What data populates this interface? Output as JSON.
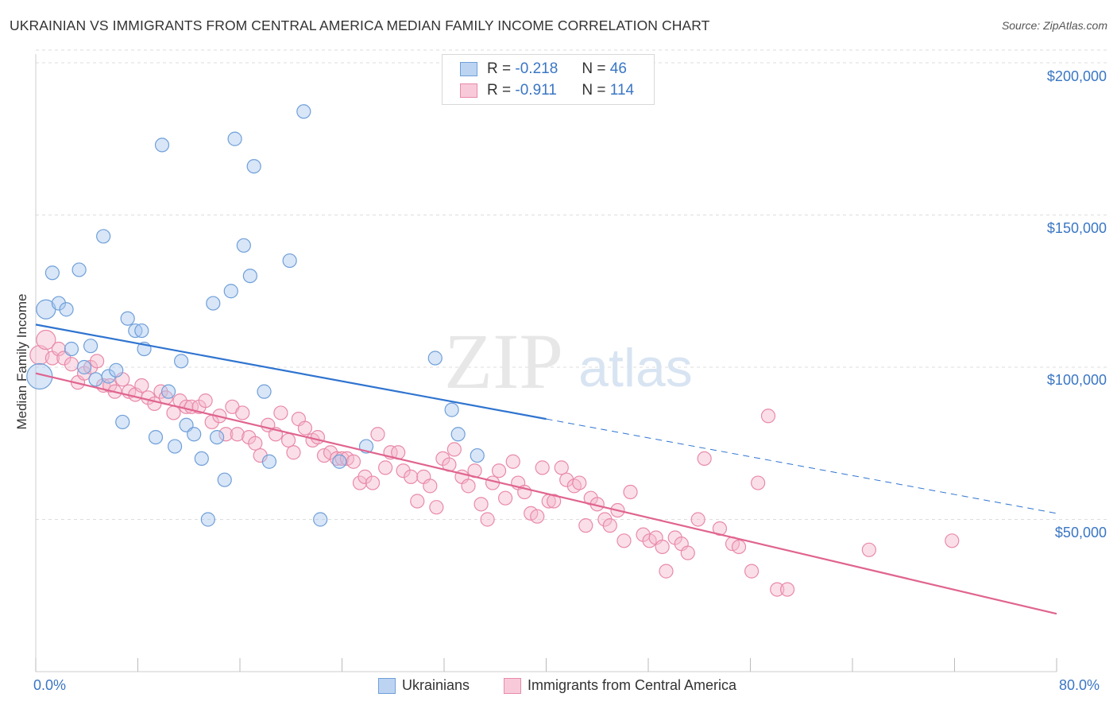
{
  "title": "UKRAINIAN VS IMMIGRANTS FROM CENTRAL AMERICA MEDIAN FAMILY INCOME CORRELATION CHART",
  "source": "Source: ZipAtlas.com",
  "watermark": {
    "zip": "ZIP",
    "atlas": "atlas"
  },
  "legend": {
    "r_label": "R =",
    "n_label": "N =",
    "ukrainians": {
      "r": "-0.218",
      "n": "46"
    },
    "central_america": {
      "r": "-0.911",
      "n": "114"
    }
  },
  "colors": {
    "blue_fill": "#a9c8ef",
    "blue_stroke": "#6f9fd8",
    "blue_line": "#2f74d0",
    "pink_fill": "#f5b8cc",
    "pink_stroke": "#e98aa9",
    "pink_line": "#e0648f",
    "tick_text": "#3a76c4",
    "grid": "#dddddd"
  },
  "chart_data": {
    "type": "scatter",
    "title": "UKRAINIAN VS IMMIGRANTS FROM CENTRAL AMERICA MEDIAN FAMILY INCOME CORRELATION CHART",
    "xlabel": "",
    "ylabel": "Median Family Income",
    "xlim": [
      0,
      80
    ],
    "ylim": [
      0,
      205000
    ],
    "x_tick_labels": [
      "0.0%",
      "80.0%"
    ],
    "y_ticks": [
      50000,
      100000,
      150000,
      200000
    ],
    "y_tick_labels": [
      "$50,000",
      "$100,000",
      "$150,000",
      "$200,000"
    ],
    "grid": true,
    "legend_position": "top-center",
    "bottom_legend": [
      "Ukrainians",
      "Immigrants from Central America"
    ],
    "series": [
      {
        "name": "Ukrainians",
        "points": [
          [
            0.3,
            97000,
            3
          ],
          [
            0.8,
            119000,
            2
          ],
          [
            1.3,
            131000,
            1
          ],
          [
            1.8,
            121000,
            1
          ],
          [
            2.4,
            119000,
            1
          ],
          [
            2.8,
            106000,
            1
          ],
          [
            3.4,
            132000,
            1
          ],
          [
            3.8,
            100000,
            1
          ],
          [
            4.3,
            107000,
            1
          ],
          [
            4.7,
            96000,
            1
          ],
          [
            5.3,
            143000,
            1
          ],
          [
            5.7,
            97000,
            1
          ],
          [
            6.3,
            99000,
            1
          ],
          [
            6.8,
            82000,
            1
          ],
          [
            7.2,
            116000,
            1
          ],
          [
            7.8,
            112000,
            1
          ],
          [
            8.3,
            112000,
            1
          ],
          [
            8.5,
            106000,
            1
          ],
          [
            9.4,
            77000,
            1
          ],
          [
            9.9,
            173000,
            1
          ],
          [
            10.4,
            92000,
            1
          ],
          [
            10.9,
            74000,
            1
          ],
          [
            11.4,
            102000,
            1
          ],
          [
            11.8,
            81000,
            1
          ],
          [
            12.4,
            78000,
            1
          ],
          [
            13.0,
            70000,
            1
          ],
          [
            13.5,
            50000,
            1
          ],
          [
            13.9,
            121000,
            1
          ],
          [
            14.2,
            77000,
            1
          ],
          [
            14.8,
            63000,
            1
          ],
          [
            15.3,
            125000,
            1
          ],
          [
            15.6,
            175000,
            1
          ],
          [
            16.3,
            140000,
            1
          ],
          [
            16.8,
            130000,
            1
          ],
          [
            17.1,
            166000,
            1
          ],
          [
            17.9,
            92000,
            1
          ],
          [
            18.3,
            69000,
            1
          ],
          [
            19.9,
            135000,
            1
          ],
          [
            21.0,
            184000,
            1
          ],
          [
            22.3,
            50000,
            1
          ],
          [
            23.8,
            69000,
            1
          ],
          [
            25.9,
            74000,
            1
          ],
          [
            31.3,
            103000,
            1
          ],
          [
            32.6,
            86000,
            1
          ],
          [
            33.1,
            78000,
            1
          ],
          [
            34.6,
            71000,
            1
          ]
        ],
        "trend": {
          "x": [
            0,
            40
          ],
          "y": [
            114000,
            83000
          ]
        },
        "trend_dashed": {
          "x": [
            40,
            80
          ],
          "y": [
            83000,
            52000
          ]
        }
      },
      {
        "name": "Immigrants from Central America",
        "points": [
          [
            0.3,
            104000,
            2
          ],
          [
            0.8,
            109000,
            2
          ],
          [
            1.3,
            103000,
            1
          ],
          [
            1.8,
            106000,
            1
          ],
          [
            2.2,
            103000,
            1
          ],
          [
            2.8,
            101000,
            1
          ],
          [
            3.3,
            95000,
            1
          ],
          [
            3.8,
            98000,
            1
          ],
          [
            4.3,
            100000,
            1
          ],
          [
            4.8,
            102000,
            1
          ],
          [
            5.3,
            94000,
            1
          ],
          [
            5.8,
            94000,
            1
          ],
          [
            6.2,
            92000,
            1
          ],
          [
            6.8,
            96000,
            1
          ],
          [
            7.3,
            92000,
            1
          ],
          [
            7.8,
            91000,
            1
          ],
          [
            8.3,
            94000,
            1
          ],
          [
            8.8,
            90000,
            1
          ],
          [
            9.3,
            88000,
            1
          ],
          [
            9.8,
            92000,
            1
          ],
          [
            10.2,
            90000,
            1
          ],
          [
            10.8,
            85000,
            1
          ],
          [
            11.3,
            89000,
            1
          ],
          [
            11.8,
            87000,
            1
          ],
          [
            12.2,
            87000,
            1
          ],
          [
            12.8,
            87000,
            1
          ],
          [
            13.3,
            89000,
            1
          ],
          [
            13.8,
            82000,
            1
          ],
          [
            14.4,
            84000,
            1
          ],
          [
            14.9,
            78000,
            1
          ],
          [
            15.4,
            87000,
            1
          ],
          [
            15.8,
            78000,
            1
          ],
          [
            16.2,
            85000,
            1
          ],
          [
            16.7,
            77000,
            1
          ],
          [
            17.2,
            75000,
            1
          ],
          [
            17.6,
            71000,
            1
          ],
          [
            18.2,
            81000,
            1
          ],
          [
            18.8,
            78000,
            1
          ],
          [
            19.2,
            85000,
            1
          ],
          [
            19.8,
            76000,
            1
          ],
          [
            20.2,
            72000,
            1
          ],
          [
            20.6,
            83000,
            1
          ],
          [
            21.1,
            80000,
            1
          ],
          [
            21.7,
            76000,
            1
          ],
          [
            22.1,
            77000,
            1
          ],
          [
            22.6,
            71000,
            1
          ],
          [
            23.1,
            72000,
            1
          ],
          [
            23.6,
            70000,
            1
          ],
          [
            24.0,
            70000,
            1
          ],
          [
            24.4,
            70000,
            1
          ],
          [
            24.9,
            69000,
            1
          ],
          [
            25.4,
            62000,
            1
          ],
          [
            25.8,
            64000,
            1
          ],
          [
            26.4,
            62000,
            1
          ],
          [
            26.8,
            78000,
            1
          ],
          [
            27.4,
            67000,
            1
          ],
          [
            27.8,
            72000,
            1
          ],
          [
            28.4,
            72000,
            1
          ],
          [
            28.8,
            66000,
            1
          ],
          [
            29.4,
            64000,
            1
          ],
          [
            29.9,
            56000,
            1
          ],
          [
            30.4,
            64000,
            1
          ],
          [
            30.9,
            61000,
            1
          ],
          [
            31.4,
            54000,
            1
          ],
          [
            31.9,
            70000,
            1
          ],
          [
            32.4,
            68000,
            1
          ],
          [
            32.8,
            73000,
            1
          ],
          [
            33.4,
            64000,
            1
          ],
          [
            33.9,
            61000,
            1
          ],
          [
            34.4,
            66000,
            1
          ],
          [
            34.9,
            55000,
            1
          ],
          [
            35.4,
            50000,
            1
          ],
          [
            35.8,
            62000,
            1
          ],
          [
            36.3,
            66000,
            1
          ],
          [
            36.8,
            57000,
            1
          ],
          [
            37.4,
            69000,
            1
          ],
          [
            37.8,
            62000,
            1
          ],
          [
            38.3,
            59000,
            1
          ],
          [
            38.8,
            52000,
            1
          ],
          [
            39.3,
            51000,
            1
          ],
          [
            39.7,
            67000,
            1
          ],
          [
            40.2,
            56000,
            1
          ],
          [
            40.6,
            56000,
            1
          ],
          [
            41.2,
            67000,
            1
          ],
          [
            41.6,
            63000,
            1
          ],
          [
            42.2,
            61000,
            1
          ],
          [
            42.6,
            62000,
            1
          ],
          [
            43.1,
            48000,
            1
          ],
          [
            43.5,
            57000,
            1
          ],
          [
            44.0,
            55000,
            1
          ],
          [
            44.6,
            50000,
            1
          ],
          [
            45.0,
            48000,
            1
          ],
          [
            45.6,
            53000,
            1
          ],
          [
            46.1,
            43000,
            1
          ],
          [
            46.6,
            59000,
            1
          ],
          [
            47.6,
            45000,
            1
          ],
          [
            48.1,
            43000,
            1
          ],
          [
            48.6,
            44000,
            1
          ],
          [
            49.1,
            41000,
            1
          ],
          [
            49.4,
            33000,
            1
          ],
          [
            50.1,
            44000,
            1
          ],
          [
            50.6,
            42000,
            1
          ],
          [
            51.1,
            39000,
            1
          ],
          [
            51.9,
            50000,
            1
          ],
          [
            52.4,
            70000,
            1
          ],
          [
            53.6,
            47000,
            1
          ],
          [
            54.6,
            42000,
            1
          ],
          [
            55.1,
            41000,
            1
          ],
          [
            56.1,
            33000,
            1
          ],
          [
            56.6,
            62000,
            1
          ],
          [
            57.4,
            84000,
            1
          ],
          [
            58.1,
            27000,
            1
          ],
          [
            58.9,
            27000,
            1
          ],
          [
            65.3,
            40000,
            1
          ],
          [
            71.8,
            43000,
            1
          ]
        ],
        "trend": {
          "x": [
            0,
            80
          ],
          "y": [
            98000,
            19000
          ]
        }
      }
    ]
  }
}
